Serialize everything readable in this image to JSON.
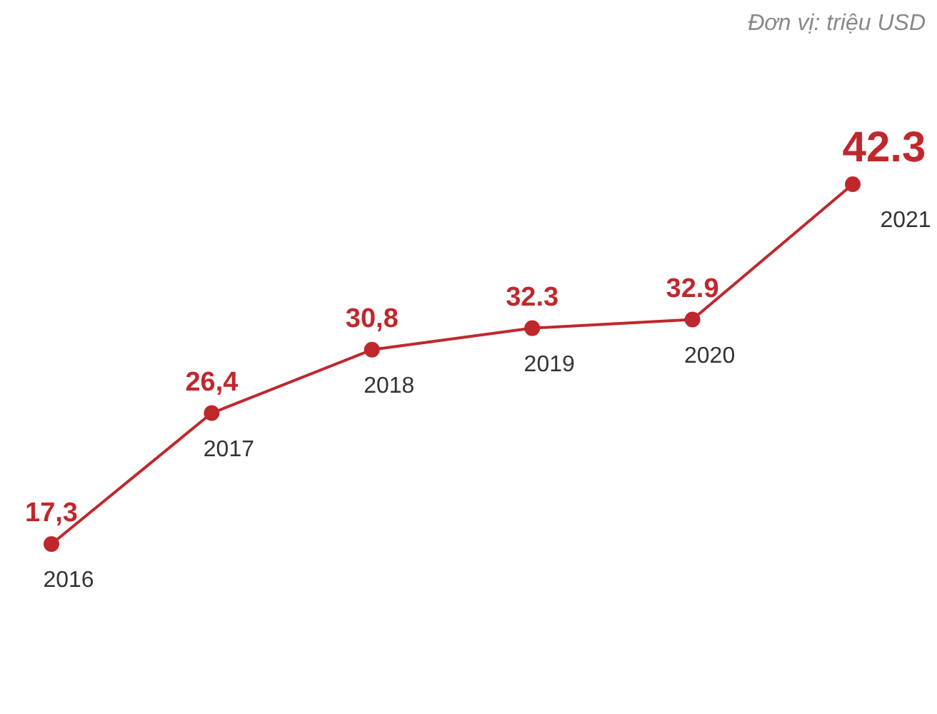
{
  "chart_data": {
    "type": "line",
    "categories": [
      "2016",
      "2017",
      "2018",
      "2019",
      "2020",
      "2021"
    ],
    "series": [
      {
        "color": "#c0272d",
        "values": [
          17.3,
          26.4,
          30.8,
          32.3,
          32.9,
          42.3
        ],
        "value_labels": [
          "17,3",
          "26,4",
          "30,8",
          "32.3",
          "32.9",
          "42.3"
        ]
      }
    ],
    "marker": "circle",
    "grid": false,
    "legend": false,
    "tick_labels": false,
    "annotations": [
      "Đơn vị: triệu USD"
    ]
  }
}
